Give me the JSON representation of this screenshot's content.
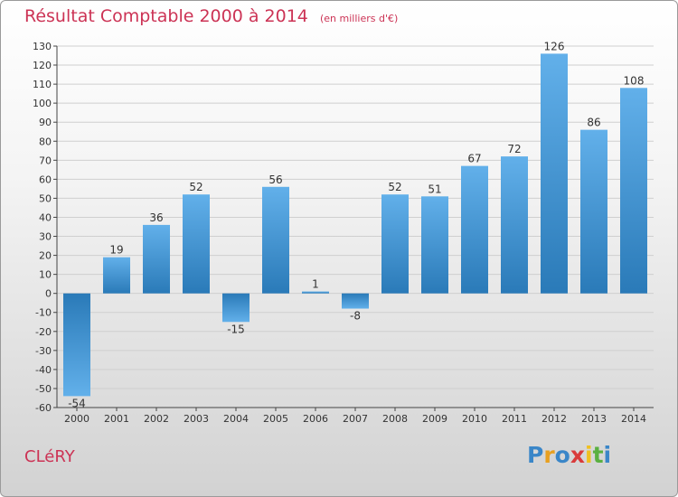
{
  "header": {
    "title": "Résultat Comptable 2000 à 2014",
    "subtitle": "(en milliers d'€)"
  },
  "footer": {
    "commune": "CLéRY",
    "brand": "Proxiti",
    "brand_colors": [
      "#3a86c8",
      "#e8a020",
      "#3a86c8",
      "#d93a3a",
      "#f0c020",
      "#5ab040",
      "#3a86c8"
    ]
  },
  "colors": {
    "title": "#cc3355",
    "bar_dark": "#2a7ab8",
    "bar_light": "#62b0ea",
    "grid": "#cfcfcf",
    "axis": "#444444"
  },
  "chart_data": {
    "type": "bar",
    "title": "Résultat Comptable 2000 à 2014",
    "ylabel": "(en milliers d'€)",
    "xlabel": "",
    "categories": [
      "2000",
      "2001",
      "2002",
      "2003",
      "2004",
      "2005",
      "2006",
      "2007",
      "2008",
      "2009",
      "2010",
      "2011",
      "2012",
      "2013",
      "2014"
    ],
    "values": [
      -54,
      19,
      36,
      52,
      -15,
      56,
      1,
      -8,
      52,
      51,
      67,
      72,
      126,
      86,
      108
    ],
    "ylim": [
      -60,
      130
    ],
    "yticks": [
      130,
      120,
      110,
      100,
      90,
      80,
      70,
      60,
      50,
      40,
      30,
      20,
      10,
      0,
      -10,
      -20,
      -30,
      -40,
      -50,
      -60
    ],
    "grid": true
  }
}
